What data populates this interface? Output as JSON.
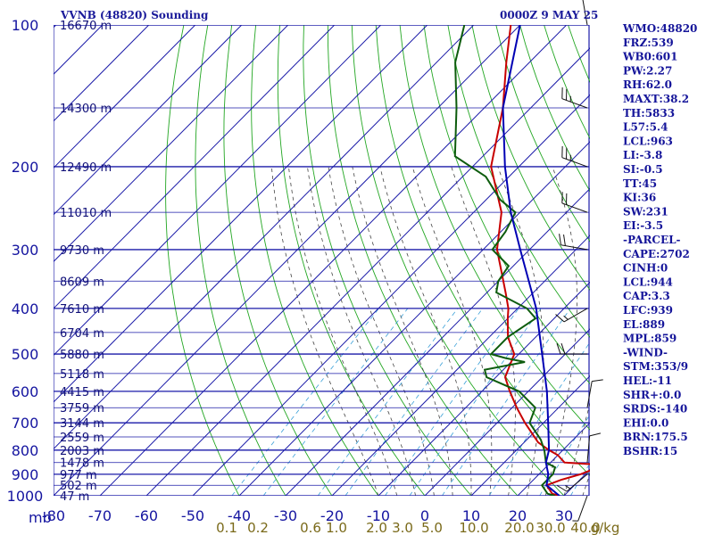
{
  "header": {
    "station": "VVNB (48820) Sounding",
    "time": "0000Z  9 MAY 25"
  },
  "axis": {
    "pressure_unit": "mb",
    "mixing_unit": "g/kg"
  },
  "stats": [
    "WMO:48820",
    "FRZ:539",
    "WB0:601",
    "PW:2.27",
    "RH:62.0",
    "MAXT:38.2",
    "TH:5833",
    "L57:5.4",
    "LCL:963",
    "LI:-3.8",
    "SI:-0.5",
    "TT:45",
    "KI:36",
    "SW:231",
    "EI:-3.5",
    "-PARCEL-",
    "CAPE:2702",
    "CINH:0",
    "LCL:944",
    "CAP:3.3",
    "LFC:939",
    "EL:889",
    "MPL:859",
    "-WIND-",
    "STM:353/9",
    "HEL:-11",
    "SHR+:0.0",
    "SRDS:-140",
    "EHI:0.0",
    "BRN:175.5",
    "BSHR:15"
  ],
  "chart_data": {
    "type": "skew-t",
    "title": "VVNB (48820) Sounding",
    "ylabel": "mb",
    "ylim": [
      1000,
      100
    ],
    "xlim": [
      -80,
      30
    ],
    "y_scale": "log",
    "pressure_levels": [
      100,
      200,
      300,
      400,
      500,
      600,
      700,
      800,
      900,
      1000
    ],
    "temperature_ticks": [
      -80,
      -70,
      -60,
      -50,
      -40,
      -30,
      -20,
      -10,
      0,
      10,
      20,
      30
    ],
    "mixing_ratio_ticks": [
      "0.1",
      "0.2",
      "0.6",
      "1.0",
      "2.0",
      "3.0",
      "5.0",
      "10.0",
      "20.0",
      "30.0",
      "40.0"
    ],
    "height_labels": [
      {
        "p": 100,
        "text": "16670 m"
      },
      {
        "p": 150,
        "text": "14300 m"
      },
      {
        "p": 200,
        "text": "12490 m"
      },
      {
        "p": 250,
        "text": "11010 m"
      },
      {
        "p": 300,
        "text": "9730 m"
      },
      {
        "p": 350,
        "text": "8609 m"
      },
      {
        "p": 400,
        "text": "7610 m"
      },
      {
        "p": 450,
        "text": "6704 m"
      },
      {
        "p": 500,
        "text": "5880 m"
      },
      {
        "p": 550,
        "text": "5118 m"
      },
      {
        "p": 600,
        "text": "4415 m"
      },
      {
        "p": 650,
        "text": "3759 m"
      },
      {
        "p": 700,
        "text": "3144 m"
      },
      {
        "p": 750,
        "text": "2559 m"
      },
      {
        "p": 800,
        "text": "2003 m"
      },
      {
        "p": 850,
        "text": "1478 m"
      },
      {
        "p": 900,
        "text": "977 m"
      },
      {
        "p": 950,
        "text": "502 m"
      },
      {
        "p": 1000,
        "text": "47 m"
      }
    ],
    "series": [
      {
        "role": "temperature",
        "color": "#c80000",
        "p": [
          1000,
          990,
          950,
          925,
          900,
          860,
          850,
          820,
          800,
          770,
          700,
          650,
          600,
          560,
          500,
          460,
          420,
          400,
          370,
          330,
          300,
          250,
          200,
          150,
          120,
          100
        ],
        "t": [
          29,
          27,
          24,
          26,
          29,
          32,
          23,
          20,
          17,
          13,
          6,
          1,
          -4,
          -8,
          -11,
          -16,
          -20,
          -22,
          -26,
          -32,
          -37,
          -44,
          -56,
          -66,
          -75,
          -82
        ]
      },
      {
        "role": "dewpoint",
        "color": "#0d5c0d",
        "p": [
          1000,
          990,
          950,
          925,
          900,
          870,
          850,
          800,
          760,
          700,
          650,
          600,
          560,
          540,
          520,
          510,
          500,
          460,
          420,
          400,
          370,
          350,
          325,
          300,
          275,
          250,
          235,
          210,
          190,
          150,
          120,
          100
        ],
        "t": [
          28,
          26,
          23,
          23,
          23,
          22,
          19,
          16,
          13,
          7,
          5,
          -2,
          -12,
          -14,
          -7,
          -12,
          -16,
          -16,
          -14,
          -18,
          -28,
          -30,
          -31,
          -38,
          -39,
          -41,
          -47,
          -55,
          -66,
          -76,
          -86,
          -92
        ]
      },
      {
        "role": "parcel",
        "color": "#0000b4",
        "p": [
          1000,
          950,
          900,
          850,
          800,
          700,
          600,
          500,
          400,
          300,
          250,
          200,
          150,
          100
        ],
        "t": [
          29,
          24,
          22,
          19,
          17,
          11,
          4,
          -5,
          -16,
          -32,
          -42,
          -53,
          -66,
          -80
        ]
      }
    ],
    "wind_barbs": [
      {
        "p": 100,
        "dir": 350,
        "kt": 10
      },
      {
        "p": 150,
        "dir": 290,
        "kt": 25
      },
      {
        "p": 200,
        "dir": 290,
        "kt": 25
      },
      {
        "p": 250,
        "dir": 290,
        "kt": 20
      },
      {
        "p": 300,
        "dir": 280,
        "kt": 20
      },
      {
        "p": 400,
        "dir": 240,
        "kt": 15
      },
      {
        "p": 500,
        "dir": 270,
        "kt": 20
      },
      {
        "p": 650,
        "dir": 10,
        "kt": 10
      },
      {
        "p": 850,
        "dir": 5,
        "kt": 10
      },
      {
        "p": 900,
        "dir": 230,
        "kt": 15
      },
      {
        "p": 1000,
        "dir": 200,
        "kt": 5
      }
    ]
  }
}
